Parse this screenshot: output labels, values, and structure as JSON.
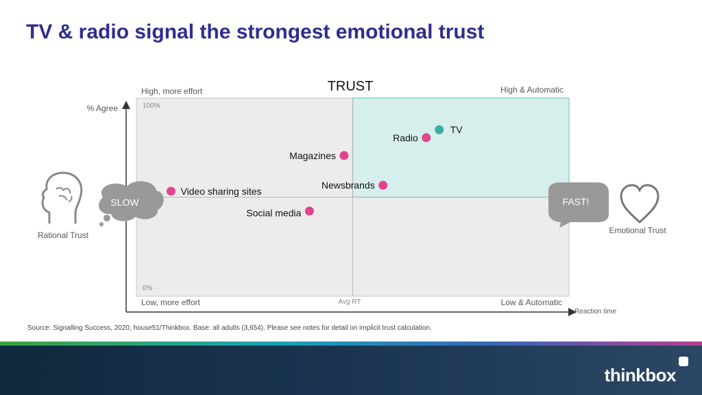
{
  "title": "TV & radio signal the strongest emotional trust",
  "chart_data": {
    "type": "scatter",
    "title": "TRUST",
    "ylabel": "% Agree",
    "xlabel": "Reaction time",
    "xlim": [
      0,
      100
    ],
    "ylim": [
      0,
      100
    ],
    "y_tick_top": "100%",
    "y_tick_bottom": "0%",
    "x_mid_label": "Avg RT",
    "quadrants": {
      "top_left": "High, more effort",
      "top_right": "High & Automatic",
      "bottom_left": "Low, more effort",
      "bottom_right": "Low & Automatic"
    },
    "points": [
      {
        "label": "TV",
        "x": 70,
        "y": 84,
        "color": "#3aaea3"
      },
      {
        "label": "Radio",
        "x": 67,
        "y": 80,
        "color": "#e0448f"
      },
      {
        "label": "Magazines",
        "x": 48,
        "y": 71,
        "color": "#e0448f"
      },
      {
        "label": "Newsbrands",
        "x": 57,
        "y": 56,
        "color": "#e0448f"
      },
      {
        "label": "Video sharing sites",
        "x": 8,
        "y": 53,
        "color": "#e0448f"
      },
      {
        "label": "Social media",
        "x": 40,
        "y": 43,
        "color": "#e0448f"
      }
    ],
    "highlight_color": "#d6efec",
    "grid": false
  },
  "slow_label": "SLOW",
  "fast_label": "FAST!",
  "rational_label": "Rational Trust",
  "emotional_label": "Emotional Trust",
  "source": "Source: Signalling Success, 2020, house51/Thinkbox. Base: all adults (3,654). Please see notes for detail on implicit trust calculation.",
  "logo_text": "thinkbox",
  "icons": {
    "left": "brain-head-icon",
    "right": "heart-icon"
  }
}
